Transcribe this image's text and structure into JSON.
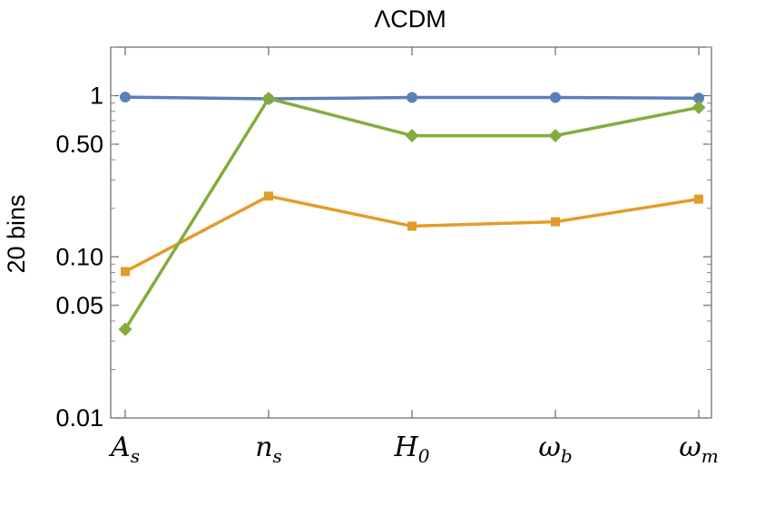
{
  "chart_data": {
    "type": "line",
    "title": "ΛCDM",
    "ylabel": "20 bins",
    "xlabel": "",
    "y_scale": "log",
    "ylim": [
      0.01,
      2.0
    ],
    "y_ticks": [
      {
        "value": 1,
        "label": "1"
      },
      {
        "value": 0.5,
        "label": "0.50"
      },
      {
        "value": 0.1,
        "label": "0.10"
      },
      {
        "value": 0.05,
        "label": "0.05"
      },
      {
        "value": 0.01,
        "label": "0.01"
      }
    ],
    "categories": [
      {
        "base": "A",
        "sub": "s"
      },
      {
        "base": "n",
        "sub": "s"
      },
      {
        "base": "H",
        "sub": "0"
      },
      {
        "base": "ω",
        "sub": "b"
      },
      {
        "base": "ω",
        "sub": "m"
      }
    ],
    "grid": false,
    "series": [
      {
        "color": "#5b80b8",
        "marker": "circle",
        "values": [
          0.98,
          0.955,
          0.975,
          0.975,
          0.965
        ]
      },
      {
        "color": "#e39c2a",
        "marker": "square",
        "values": [
          0.081,
          0.238,
          0.155,
          0.165,
          0.228
        ]
      },
      {
        "color": "#84ac3c",
        "marker": "diamond",
        "values": [
          0.0355,
          0.96,
          0.565,
          0.565,
          0.845
        ]
      }
    ]
  }
}
